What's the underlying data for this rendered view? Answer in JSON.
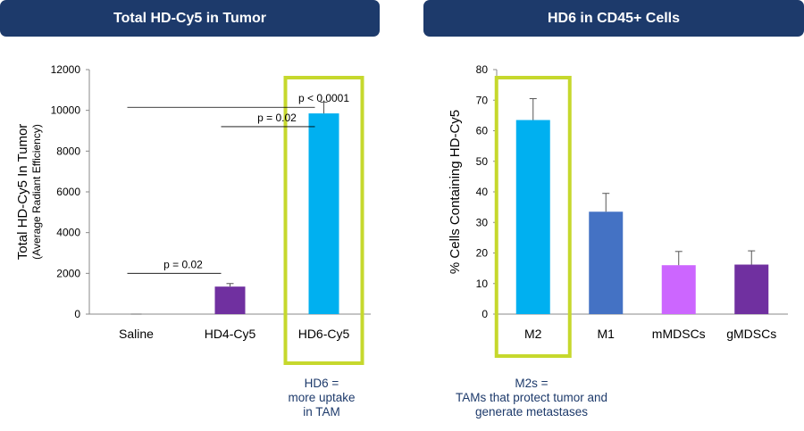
{
  "panels": {
    "left_title": "Total HD-Cy5 in Tumor",
    "right_title": "HD6 in CD45+ Cells"
  },
  "annotations": {
    "left": [
      "HD6 =",
      "more uptake",
      "in TAM"
    ],
    "right": [
      "M2s =",
      "TAMs that protect tumor and",
      "generate metastases"
    ]
  },
  "colors": {
    "banner": "#1d3a6b",
    "highlight": "#c6d82d",
    "axis": "#888888"
  },
  "chart_data": [
    {
      "type": "bar",
      "title": "Total HD-Cy5 in Tumor",
      "ylabel": "Total HD-Cy5 In Tumor",
      "ylabel_sub": "(Average Radiant Efficiency)",
      "xlabel": "",
      "categories": [
        "Saline",
        "HD4-Cy5",
        "HD6-Cy5"
      ],
      "values": [
        0,
        1350,
        9850
      ],
      "errors": [
        0,
        150,
        550
      ],
      "colors": [
        "#7030a0",
        "#7030a0",
        "#00b0f0"
      ],
      "ylim": [
        0,
        12000
      ],
      "yticks": [
        0,
        2000,
        4000,
        6000,
        8000,
        10000,
        12000
      ],
      "highlighted_category": "HD6-Cy5",
      "significance": [
        {
          "from": "Saline",
          "to": "HD6-Cy5",
          "label": "p < 0.0001",
          "y": 10150
        },
        {
          "from": "HD4-Cy5",
          "to": "HD6-Cy5",
          "label": "p = 0.02",
          "y": 9200
        },
        {
          "from": "Saline",
          "to": "HD4-Cy5",
          "label": "p = 0.02",
          "y": 2000
        }
      ]
    },
    {
      "type": "bar",
      "title": "HD6 in CD45+ Cells",
      "ylabel": "% Cells Containing HD-Cy5",
      "xlabel": "",
      "categories": [
        "M2",
        "M1",
        "mMDSCs",
        "gMDSCs"
      ],
      "values": [
        63.5,
        33.5,
        16,
        16.2
      ],
      "errors": [
        7,
        6,
        4.5,
        4.5
      ],
      "colors": [
        "#00b0f0",
        "#4472c4",
        "#cc66ff",
        "#7030a0"
      ],
      "ylim": [
        0,
        80
      ],
      "yticks": [
        0,
        10,
        20,
        30,
        40,
        50,
        60,
        70,
        80
      ],
      "highlighted_category": "M2"
    }
  ]
}
